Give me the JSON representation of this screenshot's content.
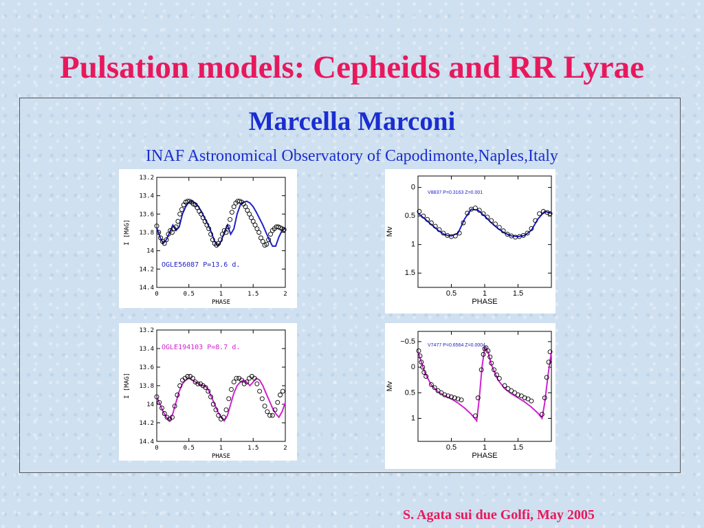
{
  "slide": {
    "title": "Pulsation models: Cepheids and RR Lyrae",
    "author": "Marcella Marconi",
    "affiliation": "INAF Astronomical Observatory of Capodimonte,Naples,Italy",
    "footer": "S. Agata sui due Golfi, May 2005"
  },
  "colors": {
    "title": "#e8185c",
    "author": "#1a2ecf",
    "blue_model": "#2020c8",
    "magenta_model": "#d020d0",
    "data_points": "#000000"
  },
  "chart_data": [
    {
      "type": "scatter",
      "label": "OGLE56087 P=13.6 d.",
      "label_color": "#2020c8",
      "xlabel": "PHASE",
      "ylabel": "I [MAG]",
      "xlim": [
        0,
        2
      ],
      "ylim": [
        14.4,
        13.2
      ],
      "xticks": [
        "0",
        "0.5",
        "1",
        "1.5",
        "2"
      ],
      "yticks": [
        "13.2",
        "13.4",
        "13.6",
        "13.8",
        "14",
        "14.2",
        "14.4"
      ],
      "series": [
        {
          "kind": "model",
          "color": "#2020c8",
          "x": [
            0,
            0.05,
            0.1,
            0.15,
            0.2,
            0.25,
            0.3,
            0.35,
            0.4,
            0.45,
            0.5,
            0.55,
            0.6,
            0.65,
            0.7,
            0.75,
            0.8,
            0.85,
            0.9,
            0.95,
            1.0,
            1.05,
            1.1,
            1.15,
            1.2,
            1.25,
            1.3,
            1.35,
            1.4,
            1.45,
            1.5,
            1.55,
            1.6,
            1.65,
            1.7,
            1.75,
            1.8,
            1.85,
            1.9,
            1.95,
            2.0
          ],
          "y": [
            13.75,
            13.85,
            13.92,
            13.88,
            13.8,
            13.72,
            13.78,
            13.74,
            13.6,
            13.52,
            13.47,
            13.46,
            13.48,
            13.52,
            13.58,
            13.65,
            13.72,
            13.8,
            13.9,
            13.95,
            13.9,
            13.8,
            13.72,
            13.82,
            13.76,
            13.6,
            13.5,
            13.47,
            13.46,
            13.48,
            13.52,
            13.58,
            13.65,
            13.72,
            13.8,
            13.88,
            13.95,
            13.95,
            13.85,
            13.78,
            13.75
          ]
        },
        {
          "kind": "observed",
          "color": "#000000",
          "x": [
            0,
            0.03,
            0.06,
            0.09,
            0.12,
            0.15,
            0.18,
            0.21,
            0.24,
            0.27,
            0.3,
            0.33,
            0.36,
            0.39,
            0.42,
            0.45,
            0.48,
            0.51,
            0.54,
            0.57,
            0.6,
            0.63,
            0.66,
            0.69,
            0.72,
            0.75,
            0.78,
            0.81,
            0.84,
            0.87,
            0.9,
            0.93,
            0.96,
            0.99,
            1.02,
            1.05,
            1.08,
            1.11,
            1.14,
            1.17,
            1.2,
            1.23,
            1.26,
            1.29,
            1.32,
            1.35,
            1.38,
            1.41,
            1.44,
            1.47,
            1.5,
            1.53,
            1.56,
            1.59,
            1.62,
            1.65,
            1.68,
            1.71,
            1.74,
            1.77,
            1.8,
            1.83,
            1.86,
            1.89,
            1.92,
            1.95,
            1.98
          ],
          "y": [
            13.73,
            13.8,
            13.86,
            13.9,
            13.92,
            13.88,
            13.82,
            13.78,
            13.8,
            13.76,
            13.74,
            13.68,
            13.6,
            13.55,
            13.5,
            13.47,
            13.46,
            13.46,
            13.47,
            13.49,
            13.5,
            13.53,
            13.57,
            13.6,
            13.64,
            13.68,
            13.72,
            13.76,
            13.82,
            13.88,
            13.92,
            13.94,
            13.92,
            13.88,
            13.82,
            13.78,
            13.8,
            13.74,
            13.66,
            13.58,
            13.52,
            13.48,
            13.46,
            13.46,
            13.47,
            13.49,
            13.52,
            13.56,
            13.6,
            13.64,
            13.68,
            13.72,
            13.76,
            13.8,
            13.86,
            13.9,
            13.94,
            13.93,
            13.88,
            13.82,
            13.78,
            13.76,
            13.74,
            13.74,
            13.75,
            13.76,
            13.77
          ]
        }
      ]
    },
    {
      "type": "scatter",
      "label": "OGLE194103 P=8.7 d.",
      "label_color": "#d020d0",
      "xlabel": "PHASE",
      "ylabel": "I [MAG]",
      "xlim": [
        0,
        2
      ],
      "ylim": [
        14.4,
        13.2
      ],
      "xticks": [
        "0",
        "0.5",
        "1",
        "1.5",
        "2"
      ],
      "yticks": [
        "13.2",
        "13.4",
        "13.6",
        "13.8",
        "14",
        "14.2",
        "14.4"
      ],
      "series": [
        {
          "kind": "model",
          "color": "#d020d0",
          "x": [
            0,
            0.05,
            0.1,
            0.15,
            0.2,
            0.25,
            0.3,
            0.35,
            0.4,
            0.45,
            0.5,
            0.55,
            0.6,
            0.65,
            0.7,
            0.75,
            0.8,
            0.85,
            0.9,
            0.95,
            1.0,
            1.05,
            1.1,
            1.15,
            1.2,
            1.25,
            1.3,
            1.35,
            1.4,
            1.45,
            1.5,
            1.55,
            1.6,
            1.65,
            1.7,
            1.75,
            1.8,
            1.85,
            1.9,
            1.95,
            2.0
          ],
          "y": [
            13.92,
            14.0,
            14.08,
            14.14,
            14.18,
            14.1,
            13.98,
            13.86,
            13.78,
            13.74,
            13.72,
            13.74,
            13.76,
            13.78,
            13.8,
            13.8,
            13.84,
            13.92,
            14.0,
            14.08,
            14.14,
            14.18,
            14.12,
            14.0,
            13.88,
            13.8,
            13.76,
            13.74,
            13.76,
            13.8,
            13.76,
            13.72,
            13.74,
            13.8,
            13.88,
            13.96,
            14.04,
            14.1,
            14.14,
            14.08,
            13.98
          ]
        },
        {
          "kind": "observed",
          "color": "#000000",
          "x": [
            0,
            0.04,
            0.08,
            0.12,
            0.16,
            0.2,
            0.24,
            0.28,
            0.32,
            0.36,
            0.4,
            0.44,
            0.48,
            0.52,
            0.56,
            0.6,
            0.64,
            0.68,
            0.72,
            0.76,
            0.8,
            0.84,
            0.88,
            0.92,
            0.96,
            1.0,
            1.04,
            1.08,
            1.12,
            1.16,
            1.2,
            1.24,
            1.28,
            1.32,
            1.36,
            1.4,
            1.44,
            1.48,
            1.52,
            1.56,
            1.6,
            1.64,
            1.68,
            1.72,
            1.76,
            1.8,
            1.84,
            1.88,
            1.92,
            1.96
          ],
          "y": [
            13.92,
            13.98,
            14.04,
            14.1,
            14.14,
            14.16,
            14.14,
            14.02,
            13.9,
            13.8,
            13.74,
            13.72,
            13.7,
            13.7,
            13.72,
            13.76,
            13.78,
            13.78,
            13.8,
            13.82,
            13.86,
            13.92,
            14.0,
            14.06,
            14.12,
            14.16,
            14.14,
            14.06,
            13.94,
            13.84,
            13.76,
            13.72,
            13.72,
            13.74,
            13.78,
            13.76,
            13.72,
            13.7,
            13.72,
            13.78,
            13.86,
            13.94,
            14.02,
            14.08,
            14.12,
            14.12,
            14.06,
            13.98,
            13.9,
            13.86
          ]
        }
      ]
    },
    {
      "type": "scatter",
      "label": "V8837 P=0.3163 Z=0.001",
      "label_color": "#2020c8",
      "xlabel": "PHASE",
      "ylabel": "Mv",
      "xlim": [
        0,
        2
      ],
      "ylim": [
        1.75,
        -0.2
      ],
      "xticks": [
        "0.5",
        "1",
        "1.5"
      ],
      "yticks": [
        "0",
        "0.5",
        "1",
        "1.5"
      ],
      "series": [
        {
          "kind": "model",
          "color": "#2020c8",
          "x": [
            0,
            0.1,
            0.2,
            0.3,
            0.4,
            0.5,
            0.6,
            0.7,
            0.8,
            0.9,
            1.0,
            1.1,
            1.2,
            1.3,
            1.4,
            1.5,
            1.6,
            1.7,
            1.8,
            1.9,
            2.0
          ],
          "y": [
            0.45,
            0.55,
            0.65,
            0.75,
            0.83,
            0.85,
            0.8,
            0.55,
            0.38,
            0.4,
            0.5,
            0.62,
            0.72,
            0.8,
            0.85,
            0.86,
            0.84,
            0.75,
            0.55,
            0.42,
            0.45
          ]
        },
        {
          "kind": "observed",
          "color": "#000000",
          "x": [
            0.02,
            0.08,
            0.14,
            0.2,
            0.26,
            0.32,
            0.38,
            0.44,
            0.5,
            0.56,
            0.62,
            0.68,
            0.74,
            0.8,
            0.86,
            0.92,
            0.98,
            1.04,
            1.1,
            1.16,
            1.22,
            1.28,
            1.34,
            1.4,
            1.46,
            1.52,
            1.58,
            1.64,
            1.7,
            1.76,
            1.82,
            1.88,
            1.94,
            1.98
          ],
          "y": [
            0.42,
            0.5,
            0.56,
            0.62,
            0.68,
            0.74,
            0.8,
            0.84,
            0.86,
            0.85,
            0.8,
            0.62,
            0.45,
            0.38,
            0.36,
            0.4,
            0.46,
            0.52,
            0.58,
            0.64,
            0.7,
            0.76,
            0.82,
            0.85,
            0.87,
            0.86,
            0.84,
            0.8,
            0.72,
            0.58,
            0.46,
            0.42,
            0.44,
            0.46
          ]
        }
      ]
    },
    {
      "type": "scatter",
      "label": "V7477 P=0.6564 Z=0.0004",
      "label_color": "#2020c8",
      "xlabel": "PHASE",
      "ylabel": "Mv",
      "xlim": [
        0,
        2
      ],
      "ylim": [
        1.45,
        -0.7
      ],
      "xticks": [
        "0.5",
        "1",
        "1.5"
      ],
      "yticks": [
        "−0.5",
        "0",
        "0.5",
        "1"
      ],
      "series": [
        {
          "kind": "model",
          "color": "#d020d0",
          "x": [
            0,
            0.05,
            0.1,
            0.2,
            0.3,
            0.4,
            0.5,
            0.6,
            0.7,
            0.8,
            0.88,
            0.92,
            0.96,
            1.0,
            1.05,
            1.1,
            1.2,
            1.3,
            1.4,
            1.5,
            1.6,
            1.7,
            1.8,
            1.86,
            1.9,
            1.95,
            2.0
          ],
          "y": [
            -0.3,
            -0.1,
            0.1,
            0.35,
            0.48,
            0.56,
            0.62,
            0.7,
            0.8,
            0.92,
            1.05,
            0.6,
            0.0,
            -0.38,
            -0.3,
            -0.05,
            0.25,
            0.42,
            0.52,
            0.6,
            0.68,
            0.78,
            0.9,
            1.0,
            0.7,
            0.15,
            -0.3
          ]
        },
        {
          "kind": "observed",
          "color": "#000000",
          "x": [
            0.01,
            0.03,
            0.05,
            0.07,
            0.09,
            0.12,
            0.2,
            0.25,
            0.3,
            0.35,
            0.4,
            0.45,
            0.5,
            0.55,
            0.6,
            0.65,
            0.86,
            0.9,
            0.95,
            0.98,
            1.0,
            1.02,
            1.05,
            1.08,
            1.1,
            1.14,
            1.18,
            1.22,
            1.3,
            1.35,
            1.4,
            1.45,
            1.5,
            1.55,
            1.6,
            1.65,
            1.7,
            1.86,
            1.9,
            1.93,
            1.96,
            1.98
          ],
          "y": [
            -0.32,
            -0.22,
            -0.1,
            0.0,
            0.1,
            0.18,
            0.34,
            0.4,
            0.46,
            0.5,
            0.54,
            0.56,
            0.58,
            0.6,
            0.62,
            0.64,
            0.95,
            0.6,
            0.05,
            -0.25,
            -0.36,
            -0.38,
            -0.32,
            -0.2,
            -0.08,
            0.05,
            0.15,
            0.22,
            0.36,
            0.42,
            0.46,
            0.5,
            0.54,
            0.56,
            0.6,
            0.62,
            0.66,
            0.92,
            0.6,
            0.2,
            -0.1,
            -0.3
          ]
        }
      ]
    }
  ]
}
